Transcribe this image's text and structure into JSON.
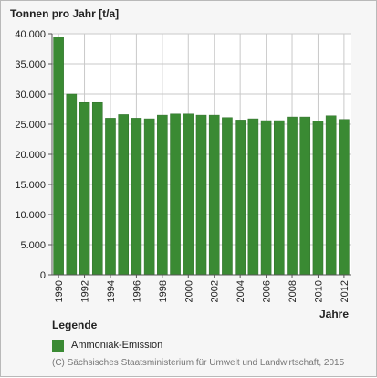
{
  "chart_data": {
    "type": "bar",
    "ylabel": "Tonnen pro Jahr [t/a]",
    "xlabel": "Jahre",
    "categories": [
      "1990",
      "1991",
      "1992",
      "1993",
      "1994",
      "1995",
      "1996",
      "1997",
      "1998",
      "1999",
      "2000",
      "2001",
      "2002",
      "2003",
      "2004",
      "2005",
      "2006",
      "2007",
      "2008",
      "2009",
      "2010",
      "2011",
      "2012"
    ],
    "series": [
      {
        "name": "Ammoniak-Emission",
        "values": [
          39500,
          30000,
          28600,
          28600,
          26000,
          26600,
          26000,
          25900,
          26500,
          26700,
          26700,
          26500,
          26500,
          26100,
          25700,
          25900,
          25600,
          25600,
          26200,
          26200,
          25500,
          26400,
          25800
        ]
      }
    ],
    "xtick_labels": [
      "1990",
      "1992",
      "1994",
      "1996",
      "1998",
      "2000",
      "2002",
      "2004",
      "2006",
      "2008",
      "2010",
      "2012"
    ],
    "ytick_labels": [
      "0",
      "5.000",
      "10.000",
      "15.000",
      "20.000",
      "25.000",
      "30.000",
      "35.000",
      "40.000"
    ],
    "ylim": [
      0,
      40000
    ],
    "grid": true,
    "colors": {
      "bar": "#3a8a33",
      "bar_edge": "#2f6f2a",
      "grid": "#c9c9c9",
      "plot_bg": "#ffffff"
    }
  },
  "legend": {
    "title": "Legende",
    "items": [
      "Ammoniak-Emission"
    ]
  },
  "copyright": "(C) Sächsisches Staatsministerium für Umwelt und Landwirtschaft, 2015"
}
